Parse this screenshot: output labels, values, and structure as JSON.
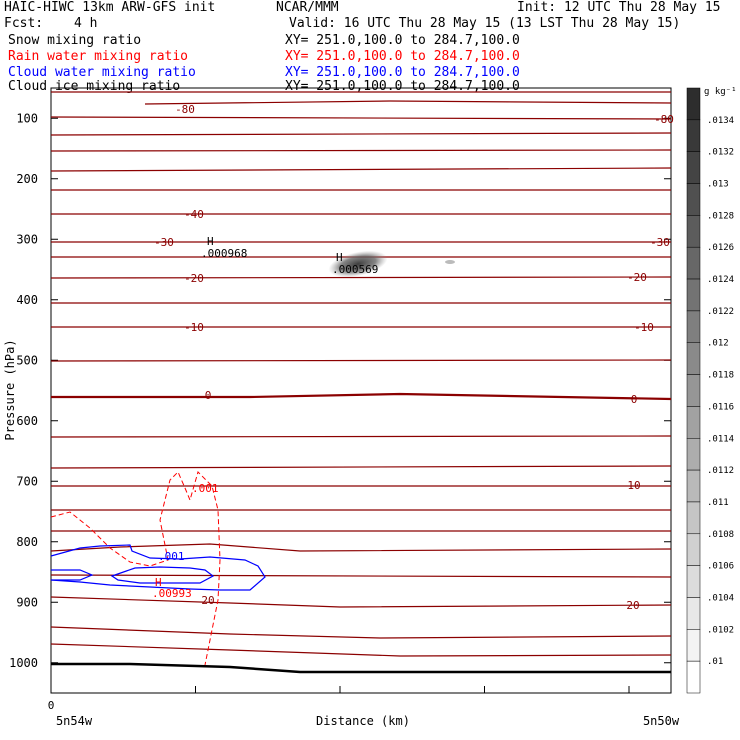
{
  "header": {
    "model": "HAIC-HIWC 13km ARW-GFS init",
    "org": "NCAR/MMM",
    "init": "Init: 12 UTC Thu 28 May 15",
    "fcst_label": "Fcst:",
    "fcst_value": "4 h",
    "valid": "Valid: 16 UTC Thu 28 May 15 (13 LST Thu 28 May 15)"
  },
  "fields": [
    {
      "name": "Snow mixing ratio",
      "xy": "XY= 251.0,100.0 to 284.7,100.0",
      "color": "#000000"
    },
    {
      "name": "Rain water mixing ratio",
      "xy": "XY= 251.0,100.0 to 284.7,100.0",
      "color": "#ff0000"
    },
    {
      "name": "Cloud water mixing ratio",
      "xy": "XY= 251.0,100.0 to 284.7,100.0",
      "color": "#0000ff"
    },
    {
      "name": "Cloud ice mixing ratio",
      "xy": "XY= 251.0,100.0 to 284.7,100.0",
      "color": "#000000"
    }
  ],
  "chart_data": {
    "type": "cross-section contour",
    "xlabel": "Distance (km)",
    "ylabel": "Pressure (hPa)",
    "x_tick_labels": [
      "0"
    ],
    "x_end_labels": [
      "5n54w",
      "5n50w"
    ],
    "y_ticks": [
      100,
      200,
      300,
      400,
      500,
      600,
      700,
      800,
      900,
      1000
    ],
    "ylim": [
      1050,
      50
    ],
    "temperature_contours": {
      "units": "C",
      "color": "#8b0000",
      "labels": [
        "-80",
        "-80",
        "-40",
        "-30",
        "-30",
        "-20",
        "-20",
        "-10",
        "-10",
        "0",
        "0",
        "10",
        "20",
        "20"
      ]
    },
    "extrema": [
      {
        "symbol": "H",
        "value": ".000968",
        "color": "#000000"
      },
      {
        "symbol": "H",
        "value": ".000569",
        "color": "#000000"
      },
      {
        "symbol": "H",
        "value": ".00993",
        "color": "#ff0000"
      }
    ],
    "contour_labels": [
      {
        "text": ".001",
        "color": "#0000ff"
      },
      {
        "text": ".001",
        "color": "#ff0000"
      }
    ],
    "colorbar": {
      "units": "g kg⁻¹",
      "labels": [
        ".0134",
        ".0132",
        ".013",
        ".0128",
        ".0126",
        ".0124",
        ".0122",
        ".012",
        ".0118",
        ".0116",
        ".0114",
        ".0112",
        ".011",
        ".0108",
        ".0106",
        ".0104",
        ".0102",
        ".01"
      ]
    }
  }
}
